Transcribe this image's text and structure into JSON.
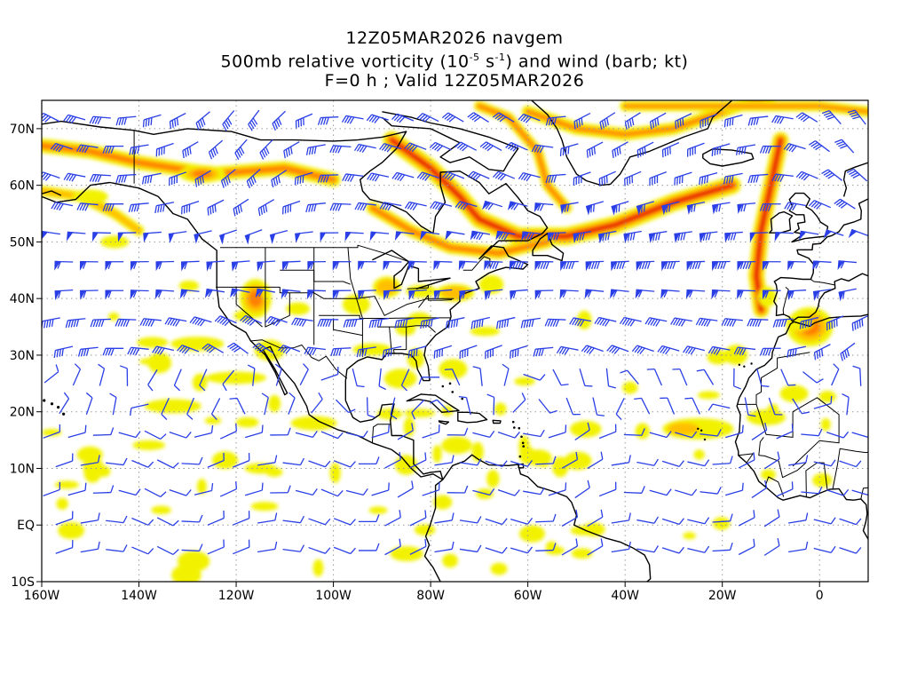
{
  "title": {
    "line1": "12Z05MAR2026 navgem",
    "line2_prefix": "500mb relative vorticity (10",
    "line2_exp1": "-5",
    "line2_mid": " s",
    "line2_exp2": "-1",
    "line2_suffix": ") and wind (barb; kt)",
    "line3": "F=0 h ; Valid 12Z05MAR2026"
  },
  "axes": {
    "x_ticks": [
      "160W",
      "140W",
      "120W",
      "100W",
      "80W",
      "60W",
      "40W",
      "20W",
      "0"
    ],
    "y_ticks": [
      "70N",
      "60N",
      "50N",
      "40N",
      "30N",
      "20N",
      "10N",
      "EQ",
      "10S"
    ]
  },
  "colors": {
    "vorticity_low": "#f2f200",
    "vorticity_mid": "#ffbf00",
    "vorticity_high": "#ff7f00",
    "vorticity_max": "#e60000",
    "wind_barb": "#2a3fe6",
    "coastline": "#000000",
    "grid": "#999999"
  }
}
